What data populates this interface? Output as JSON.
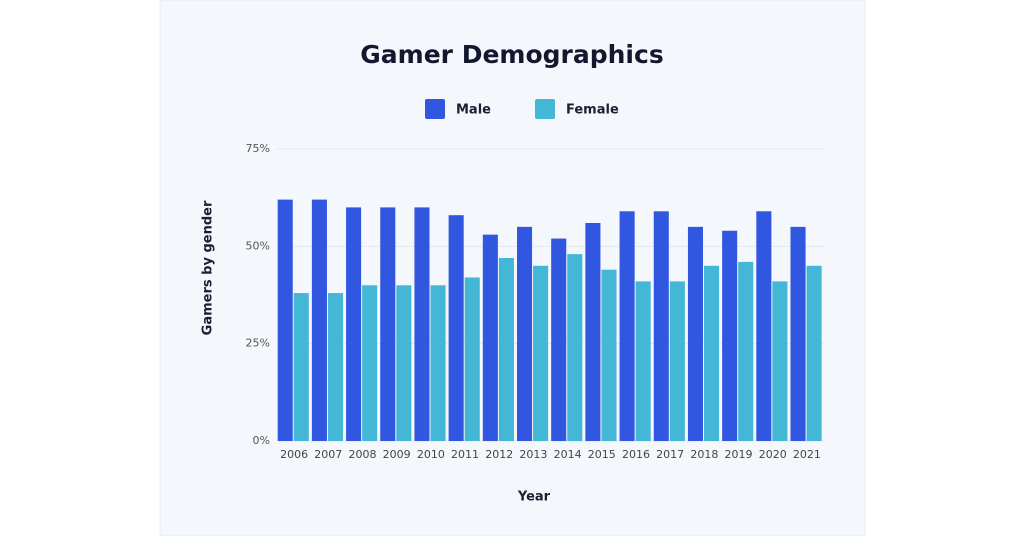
{
  "chart_data": {
    "type": "bar",
    "title": "Gamer Demographics",
    "x_label": "Year",
    "y_label": "Gamers by gender",
    "categories": [
      "2006",
      "2007",
      "2008",
      "2009",
      "2010",
      "2011",
      "2012",
      "2013",
      "2014",
      "2015",
      "2016",
      "2017",
      "2018",
      "2019",
      "2020",
      "2021"
    ],
    "series": [
      {
        "name": "Male",
        "color": "#3157e0",
        "values": [
          62,
          62,
          60,
          60,
          60,
          58,
          53,
          55,
          52,
          56,
          59,
          59,
          55,
          54,
          59,
          55
        ]
      },
      {
        "name": "Female",
        "color": "#45b7d6",
        "values": [
          38,
          38,
          40,
          40,
          40,
          42,
          47,
          45,
          48,
          44,
          41,
          41,
          45,
          46,
          41,
          45
        ]
      }
    ],
    "ylim": [
      0,
      75
    ],
    "yticks": [
      {
        "value": 0,
        "label": "0%"
      },
      {
        "value": 25,
        "label": "25%"
      },
      {
        "value": 50,
        "label": "50%"
      },
      {
        "value": 75,
        "label": "75%"
      }
    ],
    "grid": true
  }
}
